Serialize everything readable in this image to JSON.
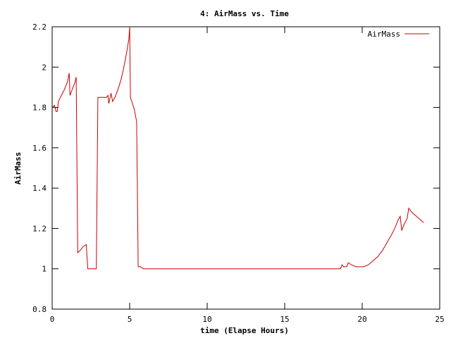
{
  "chart_data": {
    "type": "line",
    "title": "4: AirMass vs. Time",
    "xlabel": "time (Elapse Hours)",
    "ylabel": "AirMass",
    "xlim": [
      0,
      25
    ],
    "ylim": [
      0.8,
      2.2
    ],
    "xticks": [
      0,
      5,
      10,
      15,
      20,
      25
    ],
    "yticks": [
      0.8,
      1,
      1.2,
      1.4,
      1.6,
      1.8,
      2,
      2.2
    ],
    "xtick_labels": [
      "0",
      "5",
      "10",
      "15",
      "20",
      "25"
    ],
    "ytick_labels": [
      "0.8",
      "1",
      "1.2",
      "1.4",
      "1.6",
      "1.8",
      "2",
      "2.2"
    ],
    "grid": false,
    "legend_position": "top-right",
    "series": [
      {
        "name": "AirMass",
        "color": "#cc0000",
        "points": [
          [
            0.0,
            1.8
          ],
          [
            0.15,
            1.81
          ],
          [
            0.25,
            1.78
          ],
          [
            0.33,
            1.78
          ],
          [
            0.4,
            1.83
          ],
          [
            0.6,
            1.86
          ],
          [
            0.8,
            1.89
          ],
          [
            1.0,
            1.93
          ],
          [
            1.1,
            1.97
          ],
          [
            1.15,
            1.86
          ],
          [
            1.3,
            1.89
          ],
          [
            1.45,
            1.92
          ],
          [
            1.55,
            1.95
          ],
          [
            1.65,
            1.08
          ],
          [
            1.8,
            1.09
          ],
          [
            2.0,
            1.11
          ],
          [
            2.2,
            1.12
          ],
          [
            2.3,
            1.0
          ],
          [
            2.5,
            1.0
          ],
          [
            2.7,
            1.0
          ],
          [
            2.85,
            1.0
          ],
          [
            2.95,
            1.85
          ],
          [
            3.1,
            1.85
          ],
          [
            3.3,
            1.85
          ],
          [
            3.5,
            1.85
          ],
          [
            3.6,
            1.86
          ],
          [
            3.65,
            1.82
          ],
          [
            3.8,
            1.87
          ],
          [
            3.9,
            1.83
          ],
          [
            4.05,
            1.85
          ],
          [
            4.25,
            1.89
          ],
          [
            4.45,
            1.94
          ],
          [
            4.6,
            1.99
          ],
          [
            4.8,
            2.07
          ],
          [
            4.95,
            2.14
          ],
          [
            5.0,
            2.2
          ],
          [
            5.05,
            1.85
          ],
          [
            5.3,
            1.79
          ],
          [
            5.45,
            1.73
          ],
          [
            5.55,
            1.01
          ],
          [
            5.7,
            1.01
          ],
          [
            5.9,
            1.0
          ],
          [
            6.1,
            1.0
          ],
          [
            8.0,
            1.0
          ],
          [
            10.0,
            1.0
          ],
          [
            12.0,
            1.0
          ],
          [
            14.0,
            1.0
          ],
          [
            16.0,
            1.0
          ],
          [
            18.0,
            1.0
          ],
          [
            18.6,
            1.0
          ],
          [
            18.7,
            1.02
          ],
          [
            18.8,
            1.01
          ],
          [
            19.0,
            1.01
          ],
          [
            19.1,
            1.03
          ],
          [
            19.3,
            1.02
          ],
          [
            19.6,
            1.01
          ],
          [
            19.9,
            1.01
          ],
          [
            20.1,
            1.01
          ],
          [
            20.4,
            1.02
          ],
          [
            20.7,
            1.04
          ],
          [
            21.0,
            1.06
          ],
          [
            21.3,
            1.09
          ],
          [
            21.6,
            1.13
          ],
          [
            21.9,
            1.17
          ],
          [
            22.1,
            1.2
          ],
          [
            22.3,
            1.24
          ],
          [
            22.45,
            1.26
          ],
          [
            22.55,
            1.19
          ],
          [
            22.7,
            1.22
          ],
          [
            22.9,
            1.25
          ],
          [
            23.0,
            1.3
          ],
          [
            23.2,
            1.28
          ],
          [
            23.5,
            1.26
          ],
          [
            23.8,
            1.24
          ],
          [
            23.95,
            1.23
          ]
        ]
      }
    ]
  }
}
